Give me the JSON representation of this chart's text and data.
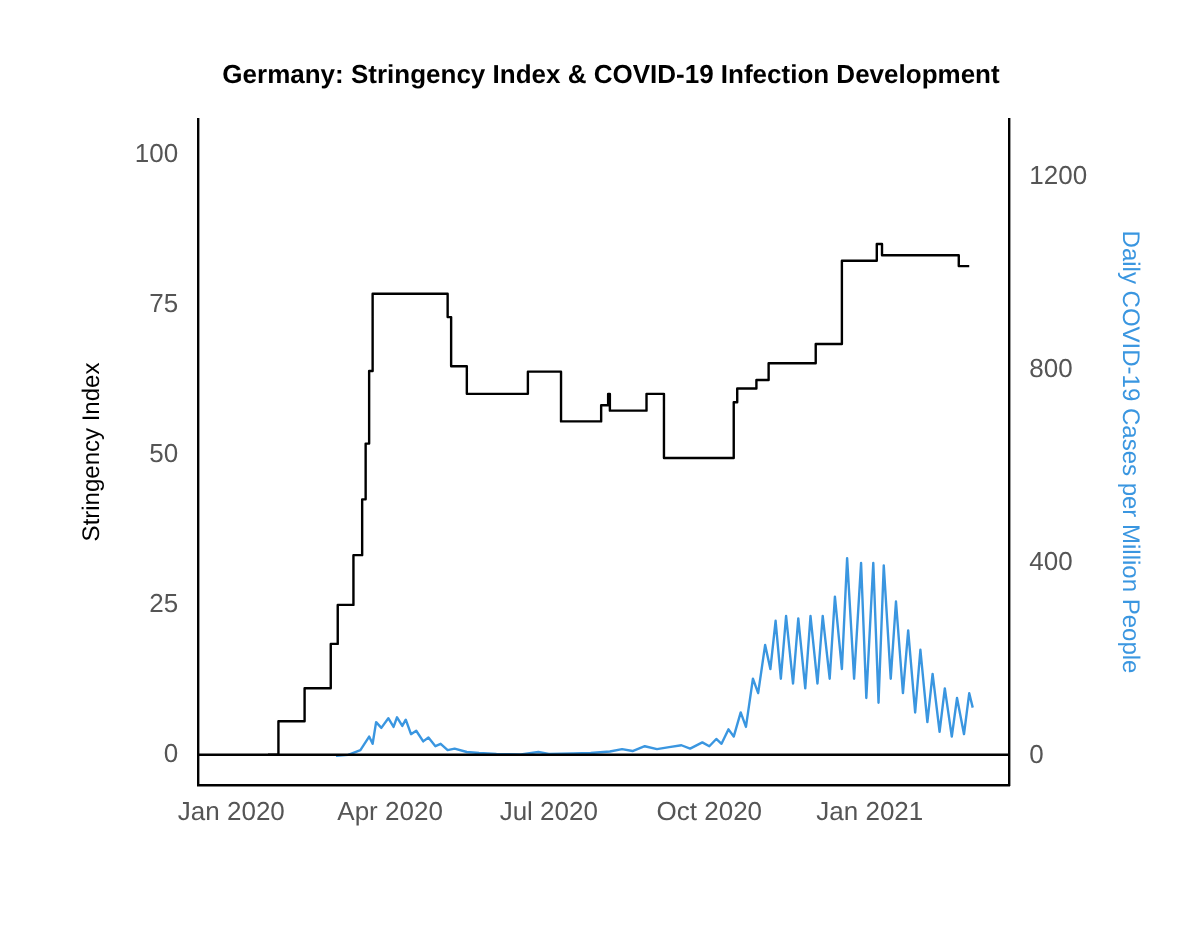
{
  "chart_data": {
    "type": "line",
    "title": "Germany: Stringency Index & COVID-19 Infection Development",
    "ylabel": "Stringency Index",
    "y2label": "Daily COVID-19 Cases per Million People",
    "xlim": [
      "2019-12-13",
      "2021-03-22"
    ],
    "xticks": [
      {
        "value": "2020-01-01",
        "label": "Jan 2020"
      },
      {
        "value": "2020-04-01",
        "label": "Apr 2020"
      },
      {
        "value": "2020-07-01",
        "label": "Jul 2020"
      },
      {
        "value": "2020-10-01",
        "label": "Oct 2020"
      },
      {
        "value": "2021-01-01",
        "label": "Jan 2021"
      }
    ],
    "ylim": [
      -5,
      106
    ],
    "yticks": [
      0,
      25,
      50,
      75,
      100
    ],
    "y2lim": [
      -60,
      1320
    ],
    "y2ticks": [
      0,
      400,
      800,
      1200
    ],
    "grid": false,
    "legend": false,
    "marker": "none",
    "line_style": "solid",
    "ref_lines": [
      {
        "axis": "y",
        "value": 0,
        "color": "#000000"
      }
    ],
    "series": [
      {
        "type": "step",
        "color": "#000000",
        "x": [
          "2020-01-22",
          "2020-01-28",
          "2020-02-12",
          "2020-02-27",
          "2020-03-02",
          "2020-03-11",
          "2020-03-16",
          "2020-03-18",
          "2020-03-20",
          "2020-03-22",
          "2020-05-04",
          "2020-05-06",
          "2020-05-15",
          "2020-06-19",
          "2020-07-08",
          "2020-07-31",
          "2020-08-04",
          "2020-08-05",
          "2020-08-26",
          "2020-09-05",
          "2020-10-15",
          "2020-10-17",
          "2020-10-28",
          "2020-11-04",
          "2020-12-01",
          "2020-12-16",
          "2021-01-05",
          "2021-01-08",
          "2021-02-21",
          "2021-02-27"
        ],
        "values": [
          0,
          5.6,
          11.1,
          18.5,
          25,
          33.3,
          42.6,
          51.9,
          64,
          76.9,
          73,
          64.8,
          60.2,
          63.9,
          55.6,
          58.3,
          60.2,
          57.4,
          60.2,
          49.5,
          58.8,
          61.1,
          62.5,
          65.3,
          68.5,
          82.4,
          85.2,
          83.3,
          81.5,
          81.5
        ]
      },
      {
        "axis": "y2",
        "color": "#3a96e0",
        "x": [
          "2020-03-01",
          "2020-03-08",
          "2020-03-15",
          "2020-03-20",
          "2020-03-22",
          "2020-03-24",
          "2020-03-27",
          "2020-03-31",
          "2020-04-03",
          "2020-04-05",
          "2020-04-08",
          "2020-04-10",
          "2020-04-13",
          "2020-04-16",
          "2020-04-20",
          "2020-04-23",
          "2020-04-27",
          "2020-04-30",
          "2020-05-04",
          "2020-05-08",
          "2020-05-15",
          "2020-05-22",
          "2020-06-01",
          "2020-06-15",
          "2020-06-25",
          "2020-07-01",
          "2020-07-15",
          "2020-07-25",
          "2020-08-05",
          "2020-08-12",
          "2020-08-18",
          "2020-08-25",
          "2020-09-01",
          "2020-09-08",
          "2020-09-15",
          "2020-09-20",
          "2020-09-27",
          "2020-10-01",
          "2020-10-05",
          "2020-10-08",
          "2020-10-12",
          "2020-10-15",
          "2020-10-19",
          "2020-10-22",
          "2020-10-26",
          "2020-10-29",
          "2020-11-02",
          "2020-11-05",
          "2020-11-08",
          "2020-11-11",
          "2020-11-14",
          "2020-11-18",
          "2020-11-21",
          "2020-11-25",
          "2020-11-28",
          "2020-12-02",
          "2020-12-05",
          "2020-12-09",
          "2020-12-12",
          "2020-12-16",
          "2020-12-19",
          "2020-12-23",
          "2020-12-27",
          "2020-12-30",
          "2021-01-03",
          "2021-01-06",
          "2021-01-09",
          "2021-01-13",
          "2021-01-16",
          "2021-01-20",
          "2021-01-23",
          "2021-01-27",
          "2021-01-30",
          "2021-02-03",
          "2021-02-06",
          "2021-02-10",
          "2021-02-13",
          "2021-02-17",
          "2021-02-20",
          "2021-02-24",
          "2021-02-27",
          "2021-03-01"
        ],
        "values": [
          0,
          2,
          12,
          40,
          25,
          70,
          58,
          78,
          60,
          80,
          62,
          75,
          45,
          52,
          30,
          38,
          20,
          25,
          12,
          15,
          8,
          6,
          4,
          3,
          8,
          4,
          5,
          6,
          9,
          14,
          10,
          20,
          14,
          18,
          22,
          15,
          28,
          20,
          35,
          25,
          55,
          40,
          90,
          60,
          160,
          130,
          230,
          180,
          280,
          160,
          290,
          150,
          285,
          140,
          290,
          150,
          290,
          160,
          330,
          180,
          410,
          160,
          400,
          120,
          400,
          110,
          395,
          160,
          320,
          130,
          260,
          90,
          220,
          70,
          170,
          50,
          140,
          40,
          120,
          45,
          130,
          100
        ]
      }
    ]
  }
}
